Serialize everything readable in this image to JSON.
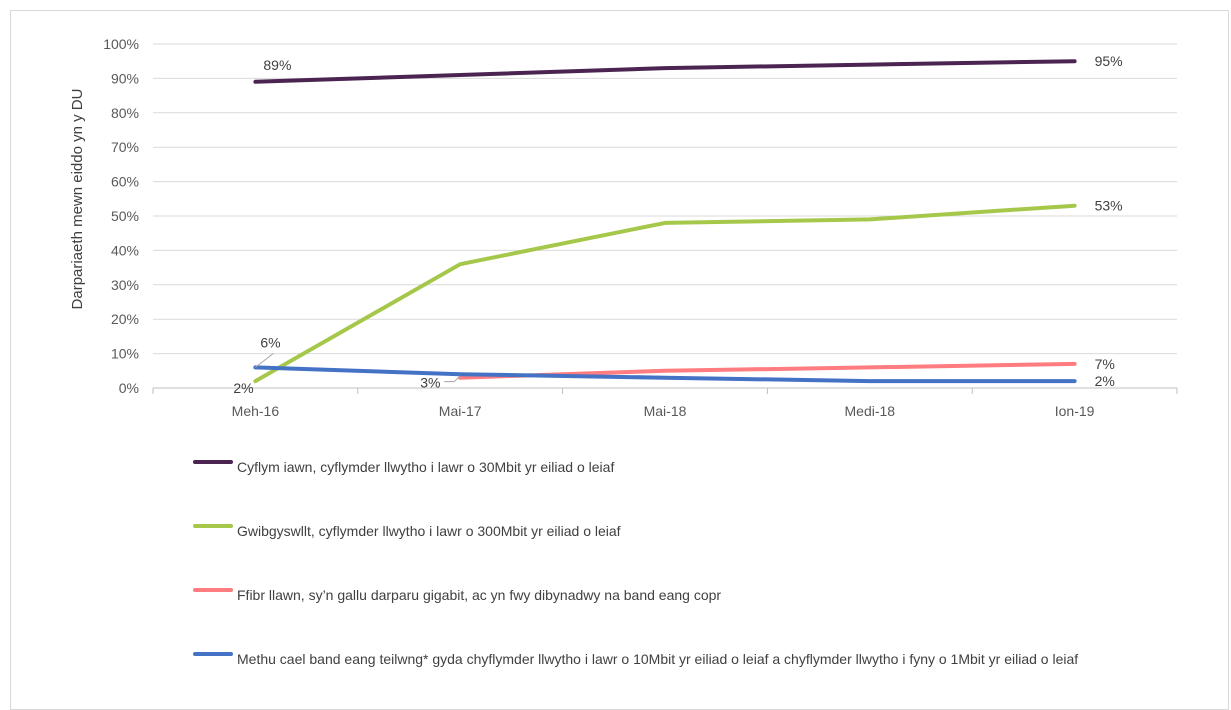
{
  "chart_data": {
    "type": "line",
    "ylabel": "Darpariaeth mewn eiddo yn y DU",
    "xlabel": "",
    "categories": [
      "Meh-16",
      "Mai-17",
      "Mai-18",
      "Medi-18",
      "Ion-19"
    ],
    "ylim": [
      0,
      100
    ],
    "yticks": [
      "0%",
      "10%",
      "20%",
      "30%",
      "40%",
      "50%",
      "60%",
      "70%",
      "80%",
      "90%",
      "100%"
    ],
    "grid": true,
    "legend_position": "bottom",
    "series": [
      {
        "name": "Cyflym iawn, cyflymder llwytho i lawr o 30Mbit yr eiliad o leiaf",
        "color": "#4b2452",
        "values": [
          89,
          91,
          93,
          94,
          95
        ],
        "labels": {
          "first": "89%",
          "last": "95%"
        }
      },
      {
        "name": "Gwibgyswllt, cyflymder llwytho i lawr o 300Mbit yr eiliad o leiaf",
        "color": "#a5c84a",
        "values": [
          2,
          36,
          48,
          49,
          53
        ],
        "labels": {
          "first": "2%",
          "last": "53%"
        }
      },
      {
        "name": "Ffibr llawn, sy’n gallu darparu gigabit, ac yn fwy dibynadwy na band eang copr",
        "color": "#ff7c80",
        "values": [
          null,
          3,
          5,
          6,
          7
        ],
        "labels": {
          "first": "3%",
          "last": "7%"
        }
      },
      {
        "name": "Methu cael band eang teilwng* gyda chyflymder llwytho i lawr o 10Mbit yr eiliad o leiaf a chyflymder llwytho i fyny o 1Mbit yr eiliad o leiaf",
        "color": "#4472c4",
        "values": [
          6,
          4,
          3,
          2,
          2
        ],
        "labels": {
          "first": "6%",
          "last": "2%"
        }
      }
    ]
  }
}
